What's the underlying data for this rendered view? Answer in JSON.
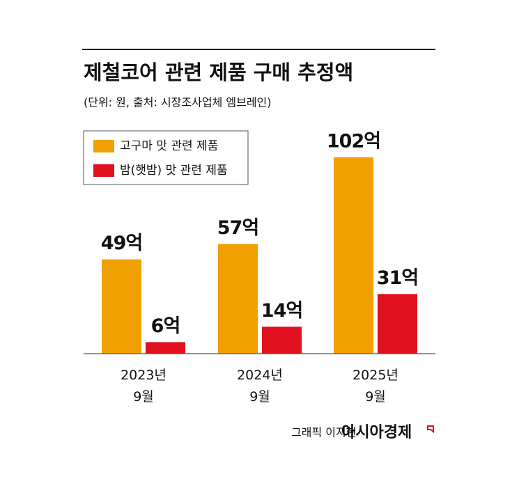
{
  "chart_data": {
    "type": "bar",
    "title": "제철코어 관련 제품 구매 추정액",
    "subtitle": "(단위: 원, 출처: 시장조사업체 엠브레인)",
    "categories": [
      "2023년\n9월",
      "2024년\n9월",
      "2025년\n9월"
    ],
    "series": [
      {
        "name": "고구마 맛 관련 제품",
        "color": "#f0a000",
        "values": [
          49,
          57,
          102
        ],
        "value_labels": [
          "49억",
          "57억",
          "102억"
        ]
      },
      {
        "name": "밤(햇밤) 맛 관련 제품",
        "color": "#e0101e",
        "values": [
          6,
          14,
          31
        ],
        "value_labels": [
          "6억",
          "14억",
          "31억"
        ]
      }
    ],
    "ylim": [
      0,
      102
    ],
    "legend": "upper-left",
    "credit": "그래픽 이지현",
    "publisher": "아시아경제"
  }
}
